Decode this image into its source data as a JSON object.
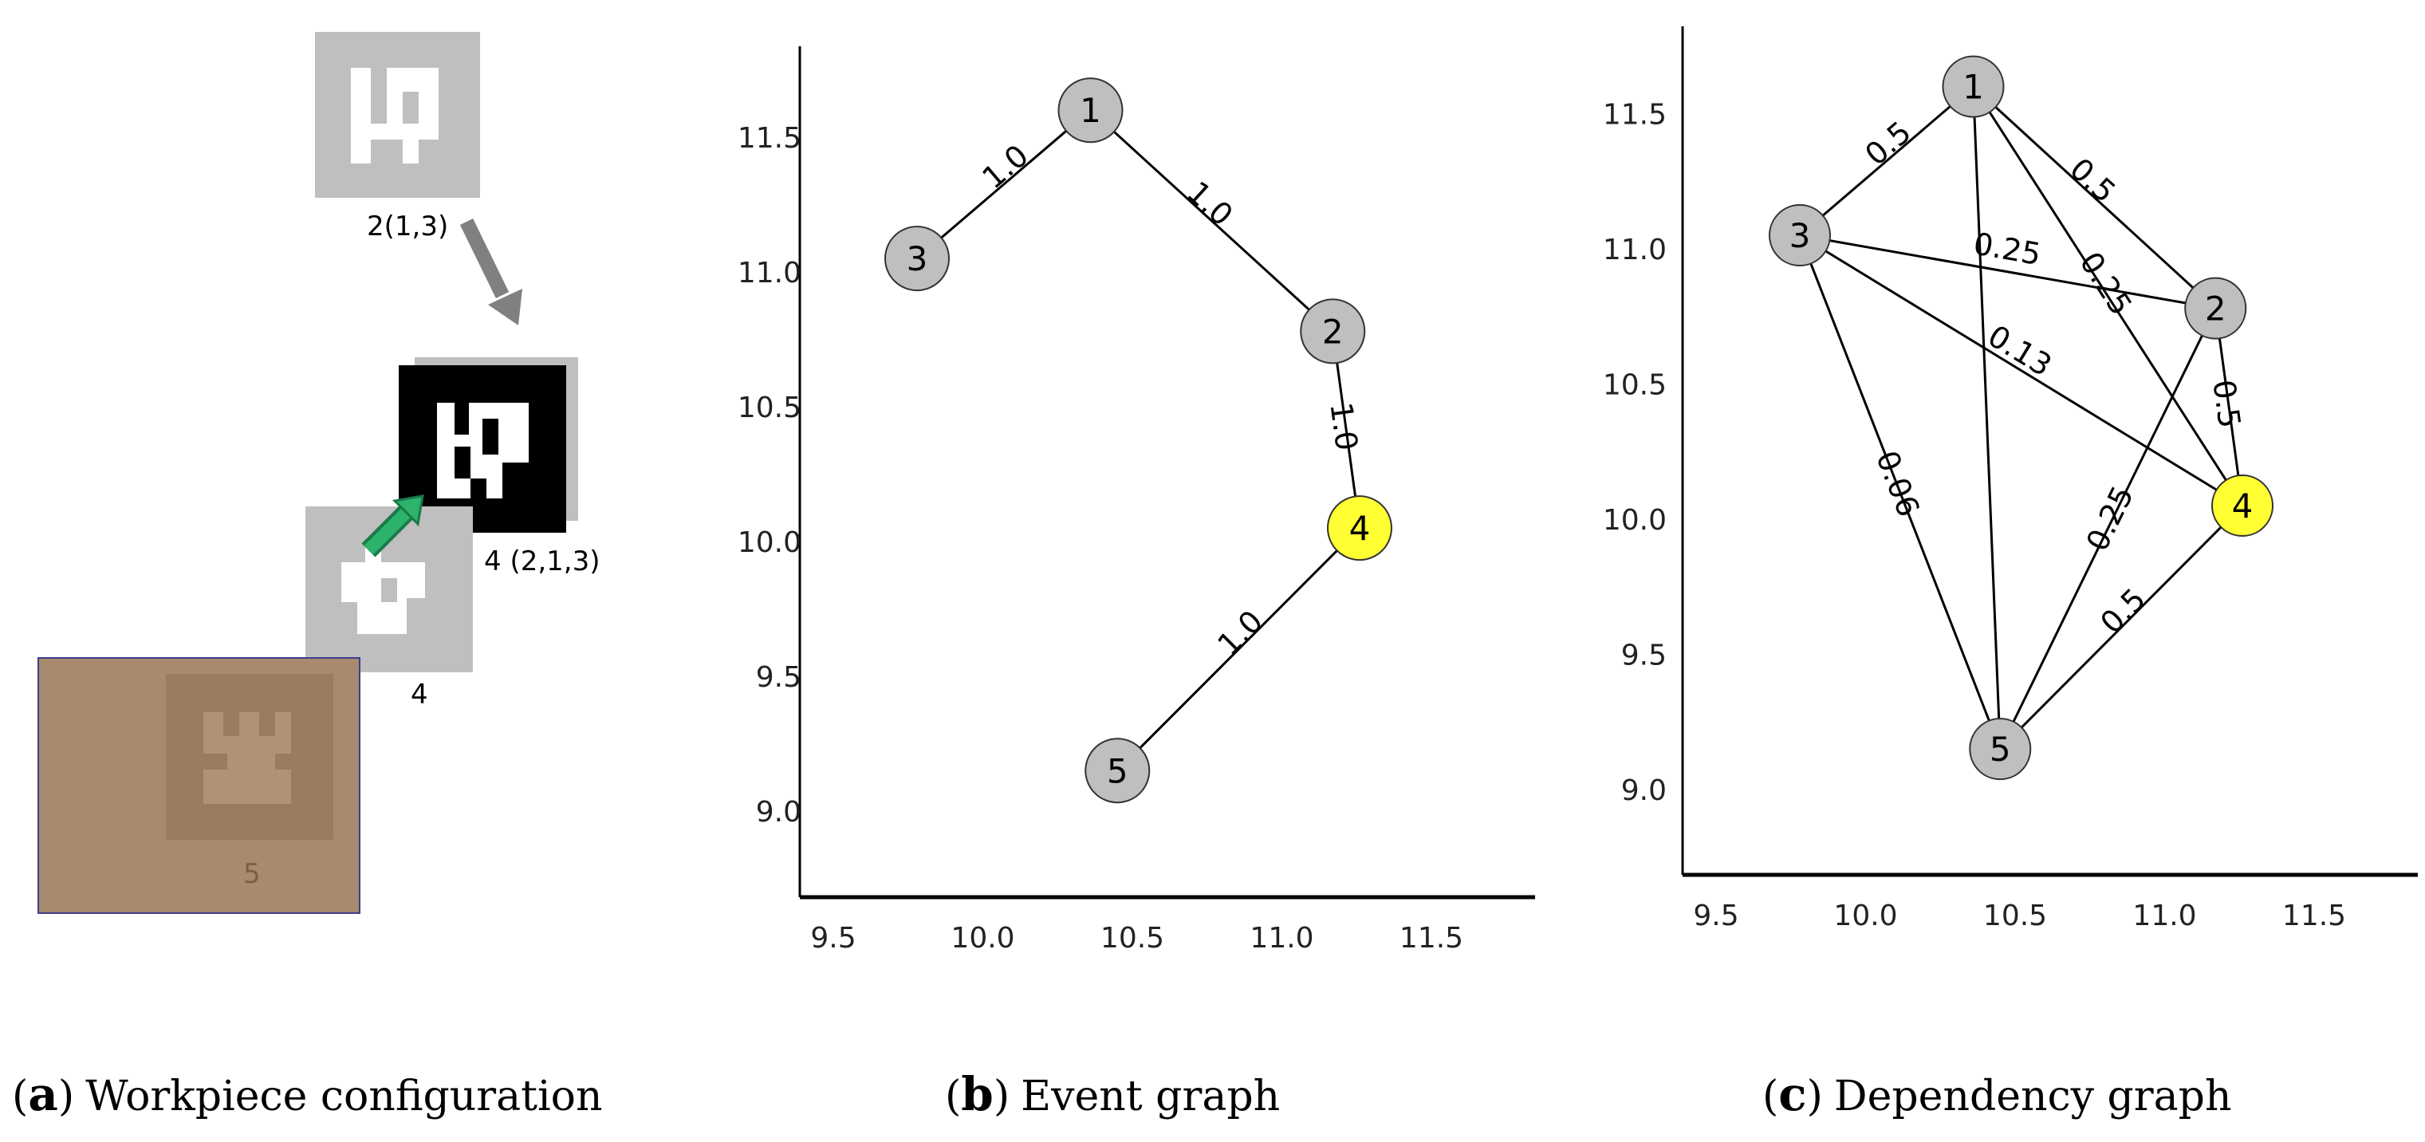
{
  "panel_a": {
    "caption_letter": "a",
    "caption_text": "Workpiece configuration",
    "label_piece_2": "2(1,3)",
    "label_piece_4_top": "4 (2,1,3)",
    "label_piece_4": "4",
    "label_piece_5": "5"
  },
  "panel_b": {
    "caption_letter": "b",
    "caption_text": "Event graph",
    "x_ticks": [
      "9.5",
      "10.0",
      "10.5",
      "11.0",
      "11.5"
    ],
    "y_ticks": [
      "11.5",
      "11.0",
      "10.5",
      "10.0",
      "9.5",
      "9.0"
    ],
    "nodes": [
      {
        "id": "1",
        "x": 10.2,
        "y": 11.6,
        "color": "#bfbfbf"
      },
      {
        "id": "3",
        "x": 9.62,
        "y": 11.05,
        "color": "#bfbfbf"
      },
      {
        "id": "2",
        "x": 11.01,
        "y": 10.78,
        "color": "#bfbfbf"
      },
      {
        "id": "4",
        "x": 11.1,
        "y": 10.05,
        "color": "#ffff33"
      },
      {
        "id": "5",
        "x": 10.29,
        "y": 9.15,
        "color": "#bfbfbf"
      }
    ],
    "edges": [
      {
        "from": "1",
        "to": "3",
        "label": "1.0"
      },
      {
        "from": "1",
        "to": "2",
        "label": "1.0"
      },
      {
        "from": "2",
        "to": "4",
        "label": "1.0"
      },
      {
        "from": "4",
        "to": "5",
        "label": "1.0"
      }
    ]
  },
  "panel_c": {
    "caption_letter": "c",
    "caption_text": "Dependency graph",
    "x_ticks": [
      "9.5",
      "10.0",
      "10.5",
      "11.0",
      "11.5"
    ],
    "y_ticks": [
      "11.5",
      "11.0",
      "10.5",
      "10.0",
      "9.5",
      "9.0"
    ],
    "nodes": [
      {
        "id": "1",
        "x": 10.2,
        "y": 11.6,
        "color": "#bfbfbf"
      },
      {
        "id": "3",
        "x": 9.62,
        "y": 11.05,
        "color": "#bfbfbf"
      },
      {
        "id": "2",
        "x": 11.01,
        "y": 10.78,
        "color": "#bfbfbf"
      },
      {
        "id": "4",
        "x": 11.1,
        "y": 10.05,
        "color": "#ffff33"
      },
      {
        "id": "5",
        "x": 10.29,
        "y": 9.15,
        "color": "#bfbfbf"
      }
    ],
    "edges": [
      {
        "from": "1",
        "to": "3",
        "label": "0.5"
      },
      {
        "from": "1",
        "to": "2",
        "label": "0.5"
      },
      {
        "from": "1",
        "to": "4",
        "label": "0.25"
      },
      {
        "from": "1",
        "to": "5",
        "label": ""
      },
      {
        "from": "3",
        "to": "2",
        "label": "0.25"
      },
      {
        "from": "3",
        "to": "4",
        "label": "0.13"
      },
      {
        "from": "3",
        "to": "5",
        "label": "0.06"
      },
      {
        "from": "2",
        "to": "4",
        "label": "0.5"
      },
      {
        "from": "2",
        "to": "5",
        "label": "0.25"
      },
      {
        "from": "4",
        "to": "5",
        "label": "0.5"
      }
    ]
  }
}
